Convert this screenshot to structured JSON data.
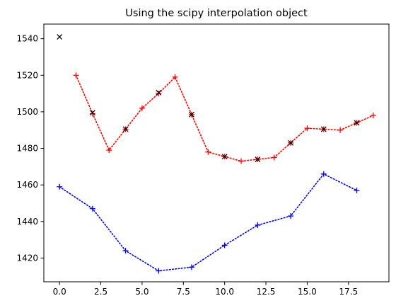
{
  "chart_data": {
    "type": "line",
    "title": "Using the scipy interpolation object",
    "xlabel": "",
    "ylabel": "",
    "xlim": [
      -0.95,
      19.95
    ],
    "ylim": [
      1407,
      1548
    ],
    "xticks": [
      0.0,
      2.5,
      5.0,
      7.5,
      10.0,
      12.5,
      15.0,
      17.5
    ],
    "xtick_labels": [
      "0.0",
      "2.5",
      "5.0",
      "7.5",
      "10.0",
      "12.5",
      "15.0",
      "17.5"
    ],
    "yticks": [
      1420,
      1440,
      1460,
      1480,
      1500,
      1520,
      1540
    ],
    "ytick_labels": [
      "1420",
      "1440",
      "1460",
      "1480",
      "1500",
      "1520",
      "1540"
    ],
    "grid": false,
    "legend": false,
    "series": [
      {
        "color": "#ff0000",
        "linestyle": "dotted",
        "marker": "+",
        "x": [
          1,
          2,
          3,
          4,
          5,
          6,
          7,
          8,
          9,
          10,
          11,
          12,
          13,
          14,
          15,
          16,
          17,
          18,
          19
        ],
        "y": [
          1520,
          1499,
          1479,
          1490.5,
          1502,
          1510,
          1519,
          1498.5,
          1478,
          1475.5,
          1473,
          1474,
          1475,
          1483,
          1491,
          1490.5,
          1490,
          1494,
          1498
        ]
      },
      {
        "color": "#0000ff",
        "linestyle": "dotted",
        "marker": "+",
        "x": [
          0,
          2,
          4,
          6,
          8,
          10,
          12,
          14,
          16,
          18
        ],
        "y": [
          1459,
          1447,
          1424,
          1413,
          1415,
          1427,
          1438,
          1443,
          1466,
          1457
        ]
      },
      {
        "color": "#000000",
        "linestyle": "none",
        "marker": "x",
        "x": [
          0,
          2,
          4,
          6,
          8,
          10,
          12,
          14,
          16,
          18
        ],
        "y": [
          1541,
          1499.5,
          1490.5,
          1510.5,
          1498.5,
          1475.5,
          1474,
          1483,
          1490.5,
          1494
        ]
      }
    ]
  }
}
